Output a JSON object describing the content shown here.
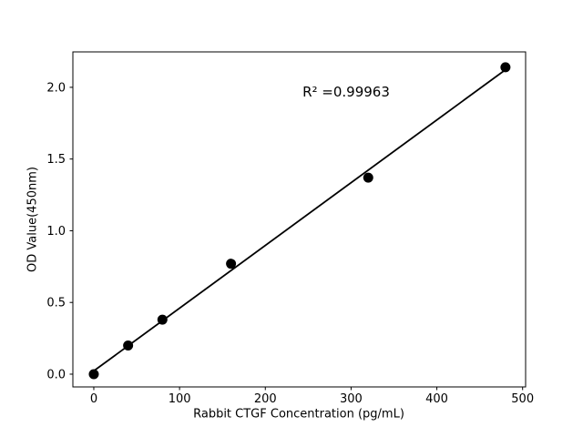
{
  "chart_data": {
    "type": "scatter",
    "title": "",
    "xlabel": "Rabbit CTGF Concentration (pg/mL)",
    "ylabel": "OD Value(450nm)",
    "annotation": "R² =0.99963",
    "x": [
      0,
      40,
      80,
      160,
      320,
      480
    ],
    "y": [
      0.0,
      0.2,
      0.38,
      0.77,
      1.37,
      2.14
    ],
    "fit_line": {
      "slope": 0.004374,
      "intercept": 0.0227,
      "x1": 0,
      "y1": 0.0227,
      "x2": 480,
      "y2": 2.1225,
      "r_squared": 0.99963
    },
    "xticks": [
      0,
      100,
      200,
      300,
      400,
      500
    ],
    "xtick_labels": [
      "0",
      "100",
      "200",
      "300",
      "400",
      "500"
    ],
    "yticks": [
      0.0,
      0.5,
      1.0,
      1.5,
      2.0
    ],
    "ytick_labels": [
      "0.0",
      "0.5",
      "1.0",
      "1.5",
      "2.0"
    ],
    "xlim": [
      -24.4,
      503.5
    ],
    "ylim": [
      -0.089,
      2.247
    ],
    "grid": false,
    "legend": "none",
    "marker_color": "#000000",
    "line_color": "#000000",
    "background_color": "#ffffff",
    "spine_color": "#000000"
  }
}
